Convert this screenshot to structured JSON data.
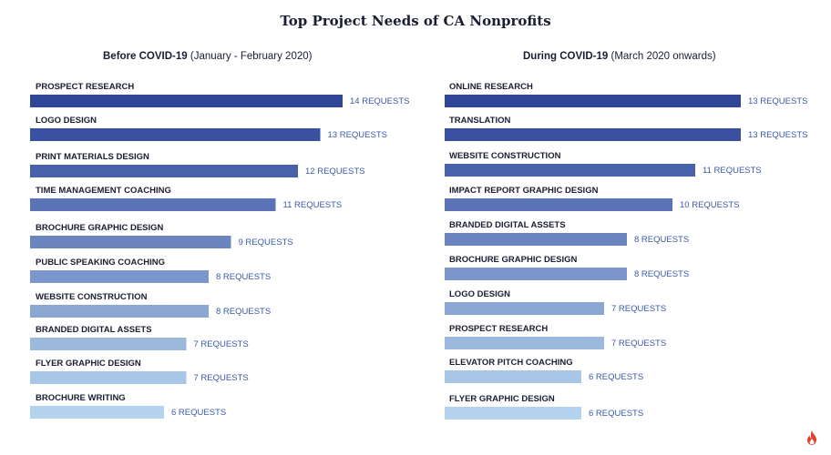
{
  "title": "Top Project Needs of CA Nonprofits",
  "logo_icon": "flame-icon",
  "chart_data": [
    {
      "type": "bar",
      "orientation": "horizontal",
      "title": "Before COVID-19",
      "subtitle": "(January - February 2020)",
      "xlim": [
        0,
        14
      ],
      "value_suffix": "REQUESTS",
      "categories": [
        "PROSPECT RESEARCH",
        "LOGO DESIGN",
        "PRINT MATERIALS DESIGN",
        "TIME MANAGEMENT COACHING",
        "BROCHURE GRAPHIC DESIGN",
        "PUBLIC SPEAKING COACHING",
        "WEBSITE CONSTRUCTION",
        "BRANDED DIGITAL ASSETS",
        "FLYER GRAPHIC DESIGN",
        "BROCHURE WRITING"
      ],
      "values": [
        14,
        13,
        12,
        11,
        9,
        8,
        8,
        7,
        7,
        6
      ],
      "colors": [
        "#2f4596",
        "#3a50a0",
        "#4861ab",
        "#5a73b6",
        "#6b85c1",
        "#7b96ca",
        "#8aa6d3",
        "#9bb8dd",
        "#a8c6e6",
        "#b4d3ee"
      ]
    },
    {
      "type": "bar",
      "orientation": "horizontal",
      "title": "During COVID-19",
      "subtitle": "(March 2020 onwards)",
      "xlim": [
        0,
        13
      ],
      "value_suffix": "REQUESTS",
      "categories": [
        "ONLINE RESEARCH",
        "TRANSLATION",
        "WEBSITE CONSTRUCTION",
        "IMPACT REPORT GRAPHIC DESIGN",
        "BRANDED DIGITAL ASSETS",
        "BROCHURE GRAPHIC DESIGN",
        "LOGO DESIGN",
        "PROSPECT RESEARCH",
        "ELEVATOR PITCH COACHING",
        "FLYER GRAPHIC DESIGN"
      ],
      "values": [
        13,
        13,
        11,
        10,
        8,
        8,
        7,
        7,
        6,
        6
      ],
      "colors": [
        "#2f4596",
        "#3a50a0",
        "#4861ab",
        "#5a73b6",
        "#6b85c1",
        "#7b96ca",
        "#8aa6d3",
        "#9bb8dd",
        "#a8c6e6",
        "#b4d3ee"
      ]
    }
  ]
}
